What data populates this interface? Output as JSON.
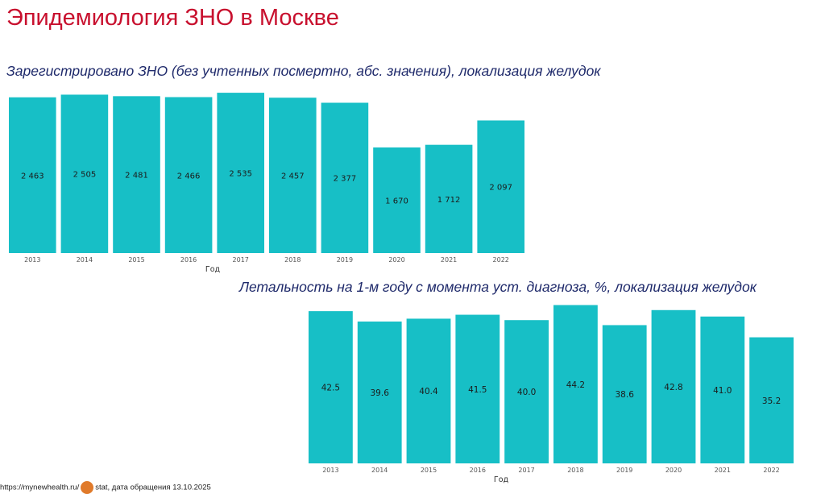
{
  "page": {
    "title": "Эпидемиология ЗНО в Москве",
    "footer_prefix": "https://mynewhealth.ru/",
    "footer_suffix": "stat, дата  обращения 13.10.2025"
  },
  "colors": {
    "bar": "#17bfc6",
    "title": "#c8102e",
    "subtitle": "#1f2a6b"
  },
  "chart_data": [
    {
      "type": "bar",
      "title": "Зарегистрировано ЗНО (без учтенных посмертно, абс. значения), локализация желудок",
      "xlabel": "Год",
      "ylabel": "",
      "categories": [
        "2013",
        "2014",
        "2015",
        "2016",
        "2017",
        "2018",
        "2019",
        "2020",
        "2021",
        "2022"
      ],
      "values": [
        2463,
        2505,
        2481,
        2466,
        2535,
        2457,
        2377,
        1670,
        1712,
        2097
      ],
      "value_labels": [
        "2 463",
        "2 505",
        "2 481",
        "2 466",
        "2 535",
        "2 457",
        "2 377",
        "1 670",
        "1 712",
        "2 097"
      ],
      "ylim": [
        0,
        2600
      ],
      "grid": false,
      "legend": "none"
    },
    {
      "type": "bar",
      "title": "Летальность на 1-м году с момента уст. диагноза, %, локализация желудок",
      "xlabel": "Год",
      "ylabel": "",
      "categories": [
        "2013",
        "2014",
        "2015",
        "2016",
        "2017",
        "2018",
        "2019",
        "2020",
        "2021",
        "2022"
      ],
      "values": [
        42.5,
        39.6,
        40.4,
        41.5,
        40.0,
        44.2,
        38.6,
        42.8,
        41.0,
        35.2
      ],
      "value_labels": [
        "42.5",
        "39.6",
        "40.4",
        "41.5",
        "40.0",
        "44.2",
        "38.6",
        "42.8",
        "41.0",
        "35.2"
      ],
      "ylim": [
        0,
        45
      ],
      "grid": false,
      "legend": "none"
    }
  ]
}
